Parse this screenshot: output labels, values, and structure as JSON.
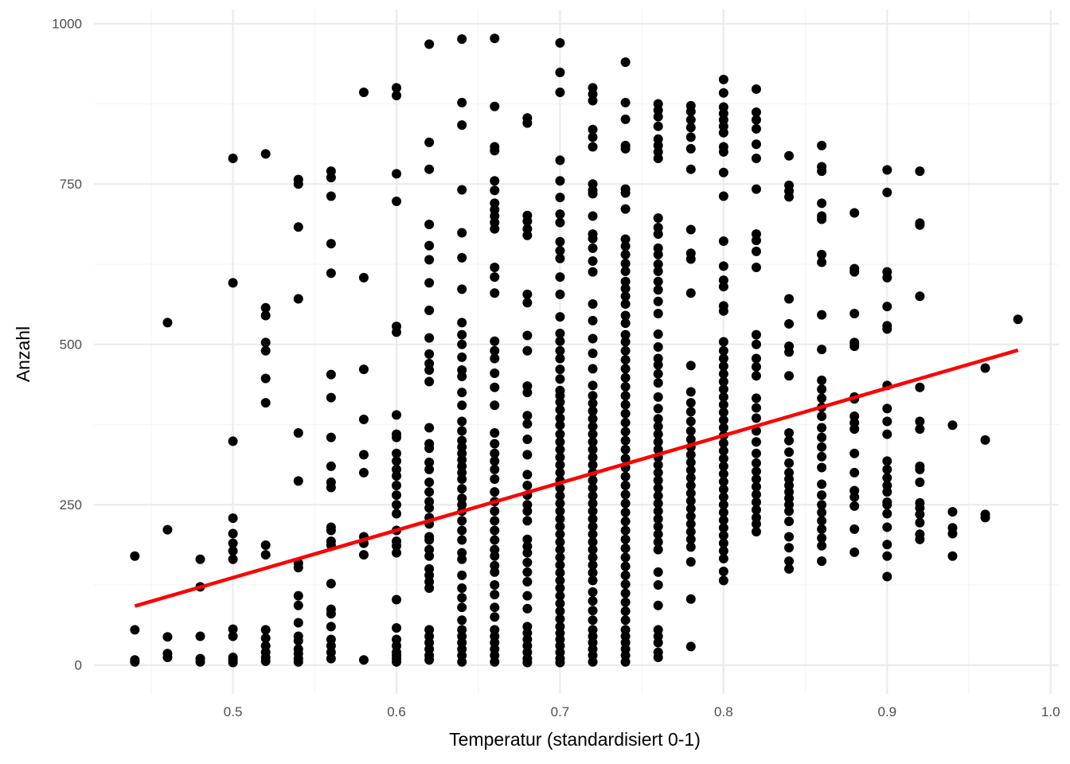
{
  "chart_data": {
    "type": "scatter",
    "xlabel": "Temperatur (standardisiert 0-1)",
    "ylabel": "Anzahl",
    "xlim": [
      0.415,
      1.005
    ],
    "ylim": [
      -45,
      1022
    ],
    "x_ticks": [
      0.5,
      0.6,
      0.7,
      0.8,
      0.9,
      1.0
    ],
    "x_tick_labels": [
      "0.5",
      "0.6",
      "0.7",
      "0.8",
      "0.9",
      "1.0"
    ],
    "y_ticks": [
      0,
      250,
      500,
      750,
      1000
    ],
    "y_tick_labels": [
      "0",
      "250",
      "500",
      "750",
      "1000"
    ],
    "grid": true,
    "point_color": "#000000",
    "trend_color": "#ff0000",
    "trend_line": {
      "x": [
        0.44,
        0.98
      ],
      "y": [
        92,
        491
      ]
    },
    "points": {
      "0.44": [
        170,
        55,
        8,
        5
      ],
      "0.46": [
        534,
        211,
        44,
        18,
        12
      ],
      "0.48": [
        165,
        122,
        45,
        10,
        5
      ],
      "0.50": [
        790,
        596,
        349,
        229,
        205,
        190,
        178,
        165,
        56,
        45,
        12,
        8,
        4
      ],
      "0.52": [
        797,
        557,
        545,
        503,
        490,
        447,
        409,
        187,
        172,
        55,
        42,
        30,
        20,
        12,
        6
      ],
      "0.54": [
        757,
        750,
        683,
        571,
        362,
        287,
        159,
        152,
        108,
        93,
        66,
        45,
        38,
        25,
        18,
        10,
        5
      ],
      "0.56": [
        770,
        760,
        731,
        657,
        611,
        453,
        417,
        355,
        310,
        285,
        277,
        215,
        210,
        193,
        187,
        127,
        87,
        80,
        60,
        40,
        30,
        20,
        10
      ],
      "0.58": [
        893,
        604,
        461,
        383,
        328,
        300,
        200,
        190,
        172,
        8
      ],
      "0.60": [
        900,
        888,
        766,
        723,
        528,
        519,
        390,
        360,
        355,
        330,
        318,
        305,
        295,
        280,
        265,
        250,
        236,
        210,
        193,
        186,
        175,
        102,
        58,
        40,
        30,
        20,
        15,
        10,
        5
      ],
      "0.62": [
        968,
        815,
        773,
        687,
        654,
        632,
        596,
        553,
        510,
        485,
        470,
        460,
        442,
        370,
        345,
        338,
        316,
        305,
        285,
        270,
        255,
        245,
        230,
        220,
        200,
        195,
        180,
        170,
        150,
        140,
        130,
        120,
        55,
        45,
        35,
        25,
        15,
        8
      ],
      "0.64": [
        976,
        877,
        842,
        741,
        674,
        635,
        586,
        534,
        515,
        500,
        480,
        460,
        450,
        425,
        405,
        380,
        365,
        350,
        340,
        330,
        320,
        310,
        300,
        290,
        275,
        260,
        250,
        240,
        225,
        210,
        195,
        175,
        165,
        140,
        120,
        105,
        90,
        70,
        55,
        45,
        35,
        25,
        15,
        5
      ],
      "0.66": [
        977,
        871,
        808,
        802,
        755,
        740,
        720,
        710,
        700,
        690,
        680,
        620,
        605,
        580,
        505,
        490,
        478,
        455,
        433,
        405,
        362,
        345,
        330,
        318,
        305,
        290,
        270,
        255,
        240,
        225,
        210,
        195,
        180,
        170,
        155,
        145,
        125,
        110,
        90,
        75,
        55,
        45,
        35,
        25,
        15,
        5
      ],
      "0.68": [
        853,
        845,
        701,
        692,
        680,
        670,
        578,
        565,
        514,
        490,
        435,
        425,
        389,
        376,
        352,
        328,
        297,
        280,
        265,
        250,
        240,
        225,
        196,
        185,
        175,
        160,
        145,
        130,
        108,
        88,
        60,
        50,
        40,
        30,
        20,
        10,
        4
      ],
      "0.70": [
        970,
        924,
        893,
        787,
        755,
        729,
        703,
        690,
        660,
        646,
        634,
        605,
        578,
        543,
        517,
        505,
        490,
        478,
        461,
        446,
        428,
        420,
        410,
        398,
        385,
        374,
        360,
        348,
        336,
        324,
        312,
        300,
        288,
        276,
        264,
        252,
        240,
        228,
        216,
        204,
        192,
        180,
        168,
        156,
        144,
        132,
        120,
        108,
        96,
        84,
        72,
        60,
        50,
        40,
        30,
        20,
        10,
        4
      ],
      "0.72": [
        900,
        890,
        880,
        835,
        823,
        808,
        750,
        740,
        735,
        700,
        672,
        665,
        650,
        630,
        613,
        563,
        537,
        509,
        486,
        462,
        436,
        420,
        408,
        396,
        384,
        372,
        360,
        348,
        336,
        324,
        312,
        300,
        288,
        276,
        264,
        252,
        240,
        228,
        216,
        204,
        192,
        180,
        168,
        156,
        144,
        132,
        114,
        100,
        85,
        70,
        55,
        45,
        35,
        25,
        15,
        5
      ],
      "0.74": [
        940,
        877,
        851,
        810,
        805,
        742,
        736,
        711,
        664,
        653,
        640,
        626,
        614,
        598,
        587,
        575,
        563,
        545,
        533,
        515,
        504,
        490,
        476,
        462,
        448,
        434,
        420,
        406,
        392,
        378,
        364,
        350,
        336,
        322,
        308,
        294,
        280,
        266,
        252,
        238,
        224,
        210,
        196,
        182,
        168,
        154,
        140,
        126,
        112,
        98,
        84,
        70,
        55,
        45,
        35,
        25,
        15,
        5
      ],
      "0.76": [
        875,
        865,
        855,
        840,
        820,
        810,
        800,
        790,
        697,
        682,
        672,
        650,
        640,
        625,
        614,
        598,
        585,
        567,
        548,
        516,
        496,
        478,
        468,
        454,
        440,
        418,
        400,
        384,
        372,
        360,
        348,
        336,
        324,
        312,
        300,
        288,
        276,
        264,
        252,
        240,
        228,
        216,
        204,
        192,
        180,
        145,
        125,
        93,
        55,
        45,
        35,
        20,
        12
      ],
      "0.78": [
        872,
        863,
        850,
        838,
        823,
        805,
        773,
        679,
        642,
        633,
        580,
        467,
        426,
        409,
        395,
        380,
        365,
        352,
        340,
        328,
        316,
        304,
        292,
        280,
        268,
        256,
        244,
        232,
        220,
        208,
        196,
        184,
        161,
        103,
        29
      ],
      "0.80": [
        913,
        892,
        870,
        860,
        850,
        840,
        830,
        808,
        800,
        768,
        731,
        661,
        622,
        600,
        590,
        560,
        552,
        504,
        490,
        478,
        466,
        454,
        442,
        430,
        418,
        406,
        394,
        382,
        370,
        358,
        346,
        334,
        322,
        310,
        298,
        286,
        274,
        262,
        250,
        238,
        226,
        214,
        202,
        190,
        178,
        166,
        146,
        132
      ],
      "0.82": [
        898,
        862,
        850,
        836,
        812,
        790,
        742,
        672,
        662,
        645,
        620,
        515,
        500,
        478,
        465,
        451,
        416,
        401,
        385,
        365,
        348,
        330,
        315,
        302,
        290,
        278,
        266,
        254,
        242,
        230,
        220,
        208
      ],
      "0.84": [
        794,
        748,
        739,
        730,
        571,
        532,
        497,
        488,
        451,
        362,
        350,
        332,
        315,
        300,
        290,
        280,
        270,
        260,
        250,
        240,
        224,
        200,
        183,
        162,
        150
      ],
      "0.86": [
        810,
        777,
        770,
        720,
        700,
        695,
        640,
        628,
        546,
        492,
        444,
        430,
        416,
        402,
        388,
        370,
        355,
        340,
        325,
        308,
        282,
        265,
        250,
        238,
        225,
        212,
        198,
        186,
        162
      ],
      "0.88": [
        705,
        618,
        613,
        548,
        503,
        497,
        418,
        415,
        388,
        378,
        368,
        330,
        300,
        272,
        262,
        248,
        212,
        176
      ],
      "0.90": [
        772,
        737,
        613,
        604,
        559,
        529,
        524,
        436,
        400,
        380,
        360,
        318,
        305,
        292,
        280,
        270,
        254,
        250,
        236,
        215,
        188,
        170,
        138
      ],
      "0.92": [
        770,
        689,
        686,
        575,
        433,
        380,
        368,
        310,
        305,
        285,
        253,
        245,
        235,
        222,
        204,
        196
      ],
      "0.94": [
        374,
        239,
        214,
        205,
        170
      ],
      "0.96": [
        463,
        351,
        235,
        230
      ],
      "0.98": [
        539
      ]
    }
  }
}
